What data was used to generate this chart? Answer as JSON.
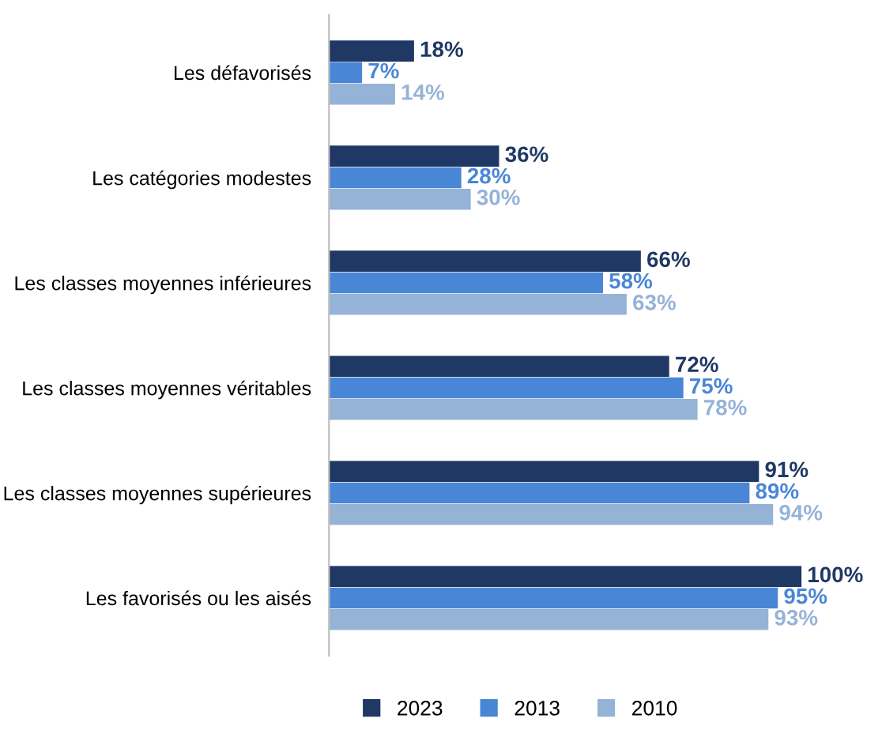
{
  "chart_data": {
    "type": "bar",
    "orientation": "horizontal",
    "categories": [
      "Les défavorisés",
      "Les catégories modestes",
      "Les classes moyennes inférieures",
      "Les classes moyennes véritables",
      "Les classes moyennes supérieures",
      "Les favorisés ou les aisés"
    ],
    "series": [
      {
        "name": "2023",
        "color": "#1f3864",
        "values": [
          18,
          36,
          66,
          72,
          91,
          100
        ],
        "value_labels": [
          "18%",
          "36%",
          "66%",
          "72%",
          "91%",
          "100%"
        ]
      },
      {
        "name": "2013",
        "color": "#4a86d6",
        "values": [
          7,
          28,
          58,
          75,
          89,
          95
        ],
        "value_labels": [
          "7%",
          "28%",
          "58%",
          "75%",
          "89%",
          "95%"
        ]
      },
      {
        "name": "2010",
        "color": "#95b3d7",
        "values": [
          14,
          30,
          63,
          78,
          94,
          93
        ],
        "value_labels": [
          "14%",
          "30%",
          "63%",
          "78%",
          "94%",
          "93%"
        ]
      }
    ],
    "legend": "bottom",
    "grid": false,
    "tick_labels": "y"
  }
}
